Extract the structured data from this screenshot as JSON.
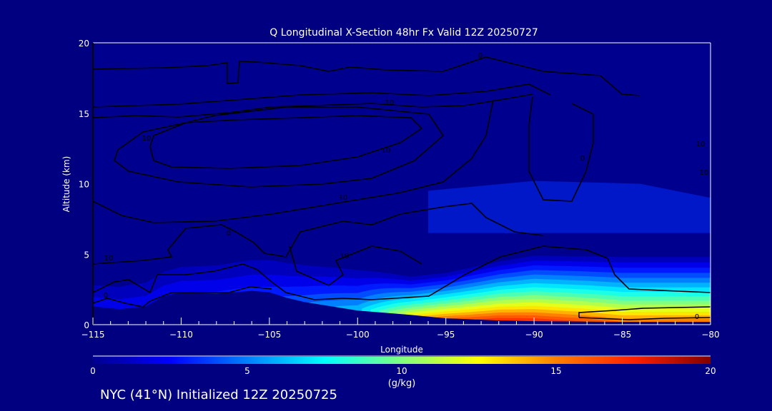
{
  "chart_data": {
    "type": "heatmap",
    "title": "Q Longitudinal X-Section 48hr  Fx Valid 12Z 20250727",
    "xlabel": "Longitude",
    "ylabel": "Altitude (km)",
    "xlim": [
      -115,
      -80
    ],
    "ylim": [
      0,
      20
    ],
    "xticks": [
      "-115",
      "-110",
      "-105",
      "-100",
      "-95",
      "-90",
      "-85",
      "-80"
    ],
    "yticks": [
      "0",
      "5",
      "10",
      "15",
      "20"
    ],
    "colorbar": {
      "range": [
        0,
        20
      ],
      "ticks": [
        "0",
        "5",
        "10",
        "15",
        "20"
      ],
      "units": "(g/kg)",
      "colors": [
        "#00008f",
        "#0000ff",
        "#0080ff",
        "#00ffff",
        "#80ff80",
        "#ffff00",
        "#ff8000",
        "#ff2000",
        "#800000"
      ]
    },
    "surface_moisture_profile": {
      "longitude": [
        -115,
        -110,
        -105,
        -100,
        -97,
        -95,
        -92,
        -90,
        -87,
        -85,
        -80
      ],
      "surface_q_gkg": [
        3,
        3,
        3.5,
        7,
        13,
        16,
        18,
        18,
        17,
        16,
        16
      ],
      "moist_layer_depth_km": [
        2.5,
        3,
        3.5,
        3.5,
        3,
        3.5,
        4.5,
        5,
        5,
        5,
        5
      ]
    },
    "terrain_km": {
      "longitude": [
        -115,
        -113.5,
        -112,
        -111,
        -110,
        -108,
        -106,
        -105,
        -104,
        -103,
        -101,
        -100,
        -98,
        -97,
        -95,
        -92,
        -90,
        -85,
        -80
      ],
      "altitude": [
        1.3,
        1.1,
        1.3,
        2.0,
        2.3,
        2.2,
        2.4,
        2.3,
        1.9,
        1.6,
        1.2,
        1.0,
        0.8,
        0.7,
        0.45,
        0.3,
        0.25,
        0.2,
        0.2
      ]
    },
    "contour_labels": [
      "10",
      "10",
      "10",
      "0",
      "10",
      "0",
      "10",
      "0",
      "0",
      "10",
      "10",
      "10",
      "0"
    ]
  },
  "footer": {
    "caption": "NYC (41°N) Initialized 12Z 20250725"
  }
}
